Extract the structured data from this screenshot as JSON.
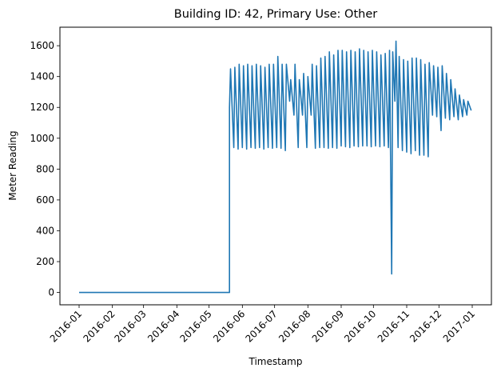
{
  "chart_data": {
    "type": "line",
    "title": "Building ID: 42, Primary Use: Other",
    "xlabel": "Timestamp",
    "ylabel": "Meter Reading",
    "xlim": [
      "2016-01-01",
      "2017-01-01"
    ],
    "ylim": [
      -80,
      1720
    ],
    "grid": false,
    "line_color": "#1f77b4",
    "x_ticks": [
      "2016-01",
      "2016-02",
      "2016-03",
      "2016-04",
      "2016-05",
      "2016-06",
      "2016-07",
      "2016-08",
      "2016-09",
      "2016-10",
      "2016-11",
      "2016-12",
      "2017-01"
    ],
    "y_ticks": [
      0,
      200,
      400,
      600,
      800,
      1000,
      1200,
      1400,
      1600
    ],
    "series": [
      {
        "x": [
          "2016-01-01",
          "2016-05-20",
          "2016-05-20",
          "2016-05-21",
          "2016-05-24",
          "2016-05-25",
          "2016-05-28",
          "2016-05-29",
          "2016-06-01",
          "2016-06-02",
          "2016-06-05",
          "2016-06-06",
          "2016-06-09",
          "2016-06-10",
          "2016-06-13",
          "2016-06-14",
          "2016-06-17",
          "2016-06-18",
          "2016-06-21",
          "2016-06-22",
          "2016-06-25",
          "2016-06-26",
          "2016-06-29",
          "2016-06-30",
          "2016-07-03",
          "2016-07-04",
          "2016-07-07",
          "2016-07-08",
          "2016-07-11",
          "2016-07-12",
          "2016-07-15",
          "2016-07-16",
          "2016-07-19",
          "2016-07-20",
          "2016-07-23",
          "2016-07-24",
          "2016-07-27",
          "2016-07-28",
          "2016-07-31",
          "2016-08-01",
          "2016-08-04",
          "2016-08-05",
          "2016-08-08",
          "2016-08-09",
          "2016-08-12",
          "2016-08-13",
          "2016-08-16",
          "2016-08-17",
          "2016-08-20",
          "2016-08-21",
          "2016-08-24",
          "2016-08-25",
          "2016-08-28",
          "2016-08-29",
          "2016-09-01",
          "2016-09-02",
          "2016-09-05",
          "2016-09-06",
          "2016-09-09",
          "2016-09-10",
          "2016-09-13",
          "2016-09-14",
          "2016-09-17",
          "2016-09-18",
          "2016-09-21",
          "2016-09-22",
          "2016-09-25",
          "2016-09-26",
          "2016-09-29",
          "2016-09-30",
          "2016-10-03",
          "2016-10-04",
          "2016-10-07",
          "2016-10-08",
          "2016-10-11",
          "2016-10-12",
          "2016-10-15",
          "2016-10-16",
          "2016-10-18",
          "2016-10-19",
          "2016-10-21",
          "2016-10-22",
          "2016-10-24",
          "2016-10-25",
          "2016-10-28",
          "2016-10-29",
          "2016-11-01",
          "2016-11-02",
          "2016-11-05",
          "2016-11-06",
          "2016-11-09",
          "2016-11-10",
          "2016-11-13",
          "2016-11-14",
          "2016-11-17",
          "2016-11-18",
          "2016-11-21",
          "2016-11-22",
          "2016-11-25",
          "2016-11-26",
          "2016-11-29",
          "2016-11-30",
          "2016-12-03",
          "2016-12-04",
          "2016-12-07",
          "2016-12-08",
          "2016-12-11",
          "2016-12-12",
          "2016-12-15",
          "2016-12-16",
          "2016-12-19",
          "2016-12-20",
          "2016-12-23",
          "2016-12-24",
          "2016-12-27",
          "2016-12-28",
          "2016-12-31"
        ],
        "y": [
          0,
          0,
          1200,
          1450,
          940,
          1460,
          930,
          1480,
          940,
          1470,
          930,
          1480,
          940,
          1470,
          935,
          1480,
          940,
          1470,
          930,
          1460,
          940,
          1480,
          935,
          1480,
          940,
          1530,
          935,
          1480,
          920,
          1480,
          1240,
          1380,
          1150,
          1480,
          940,
          1380,
          1150,
          1420,
          940,
          1400,
          1150,
          1480,
          935,
          1470,
          940,
          1520,
          940,
          1530,
          935,
          1560,
          940,
          1540,
          935,
          1570,
          950,
          1570,
          945,
          1560,
          940,
          1570,
          950,
          1560,
          945,
          1580,
          950,
          1570,
          950,
          1560,
          945,
          1570,
          950,
          1560,
          945,
          1540,
          950,
          1550,
          940,
          1570,
          120,
          1560,
          1240,
          1630,
          940,
          1530,
          920,
          1510,
          910,
          1500,
          900,
          1520,
          920,
          1520,
          890,
          1510,
          890,
          1480,
          880,
          1490,
          1150,
          1470,
          1140,
          1460,
          1050,
          1470,
          1130,
          1420,
          1120,
          1380,
          1140,
          1320,
          1120,
          1280,
          1140,
          1250,
          1150,
          1240,
          1180
        ]
      }
    ]
  }
}
